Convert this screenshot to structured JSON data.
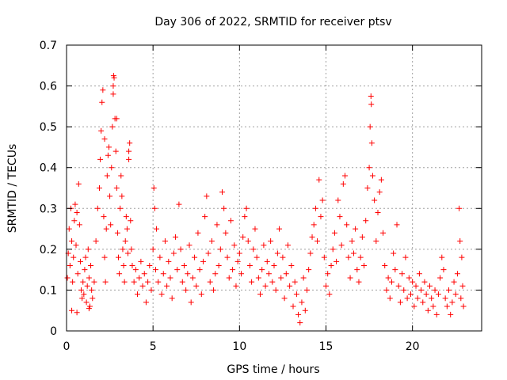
{
  "chart_data": {
    "type": "scatter",
    "title": "Day 306 of 2022, SRMTID for receiver ptsv",
    "xlabel": "GPS time / hours",
    "ylabel": "SRMTID / TECUs",
    "xlim": [
      0,
      24
    ],
    "ylim": [
      0,
      0.7
    ],
    "xticks": [
      "0",
      "5",
      "10",
      "15",
      "20"
    ],
    "yticks": [
      "0",
      "0.1",
      "0.2",
      "0.3",
      "0.4",
      "0.5",
      "0.6",
      "0.7"
    ],
    "grid": true,
    "marker": "+",
    "marker_color": "#ff0000",
    "series": [
      {
        "name": "SRMTID",
        "points": [
          [
            0.05,
            0.13
          ],
          [
            0.1,
            0.19
          ],
          [
            0.15,
            0.25
          ],
          [
            0.2,
            0.16
          ],
          [
            0.25,
            0.3
          ],
          [
            0.3,
            0.22
          ],
          [
            0.35,
            0.12
          ],
          [
            0.4,
            0.18
          ],
          [
            0.45,
            0.27
          ],
          [
            0.5,
            0.31
          ],
          [
            0.55,
            0.21
          ],
          [
            0.6,
            0.29
          ],
          [
            0.65,
            0.14
          ],
          [
            0.7,
            0.36
          ],
          [
            0.75,
            0.26
          ],
          [
            0.8,
            0.17
          ],
          [
            0.85,
            0.1
          ],
          [
            0.9,
            0.08
          ],
          [
            0.95,
            0.12
          ],
          [
            1.0,
            0.09
          ],
          [
            1.05,
            0.15
          ],
          [
            1.1,
            0.18
          ],
          [
            1.15,
            0.07
          ],
          [
            1.2,
            0.11
          ],
          [
            1.25,
            0.2
          ],
          [
            1.3,
            0.13
          ],
          [
            1.35,
            0.06
          ],
          [
            1.4,
            0.16
          ],
          [
            1.45,
            0.1
          ],
          [
            1.5,
            0.08
          ],
          [
            0.6,
            0.045
          ],
          [
            0.3,
            0.05
          ],
          [
            1.3,
            0.055
          ],
          [
            1.6,
            0.12
          ],
          [
            1.7,
            0.22
          ],
          [
            1.8,
            0.3
          ],
          [
            1.9,
            0.35
          ],
          [
            1.95,
            0.42
          ],
          [
            2.0,
            0.49
          ],
          [
            2.05,
            0.56
          ],
          [
            2.1,
            0.59
          ],
          [
            2.15,
            0.28
          ],
          [
            2.2,
            0.18
          ],
          [
            2.25,
            0.12
          ],
          [
            2.3,
            0.25
          ],
          [
            2.35,
            0.38
          ],
          [
            2.4,
            0.43
          ],
          [
            2.45,
            0.45
          ],
          [
            2.5,
            0.33
          ],
          [
            2.55,
            0.26
          ],
          [
            2.6,
            0.4
          ],
          [
            2.65,
            0.5
          ],
          [
            2.7,
            0.58
          ],
          [
            2.75,
            0.62
          ],
          [
            2.8,
            0.52
          ],
          [
            2.85,
            0.44
          ],
          [
            2.9,
            0.35
          ],
          [
            2.95,
            0.24
          ],
          [
            3.0,
            0.18
          ],
          [
            3.05,
            0.14
          ],
          [
            3.1,
            0.3
          ],
          [
            3.15,
            0.38
          ],
          [
            3.2,
            0.33
          ],
          [
            3.25,
            0.2
          ],
          [
            3.3,
            0.16
          ],
          [
            3.35,
            0.12
          ],
          [
            3.4,
            0.22
          ],
          [
            3.45,
            0.28
          ],
          [
            3.5,
            0.25
          ],
          [
            3.55,
            0.19
          ],
          [
            3.6,
            0.42
          ],
          [
            3.65,
            0.46
          ],
          [
            3.7,
            0.27
          ],
          [
            3.75,
            0.2
          ],
          [
            2.2,
            0.47
          ],
          [
            2.7,
            0.6
          ],
          [
            2.72,
            0.625
          ],
          [
            2.9,
            0.52
          ],
          [
            3.6,
            0.44
          ],
          [
            3.8,
            0.16
          ],
          [
            3.9,
            0.12
          ],
          [
            4.0,
            0.15
          ],
          [
            4.1,
            0.09
          ],
          [
            4.2,
            0.13
          ],
          [
            4.3,
            0.17
          ],
          [
            4.4,
            0.11
          ],
          [
            4.5,
            0.14
          ],
          [
            4.6,
            0.07
          ],
          [
            4.7,
            0.12
          ],
          [
            4.8,
            0.16
          ],
          [
            4.9,
            0.1
          ],
          [
            5.0,
            0.2
          ],
          [
            5.05,
            0.35
          ],
          [
            5.1,
            0.3
          ],
          [
            5.15,
            0.15
          ],
          [
            5.2,
            0.25
          ],
          [
            5.3,
            0.12
          ],
          [
            5.4,
            0.18
          ],
          [
            5.5,
            0.09
          ],
          [
            5.6,
            0.14
          ],
          [
            5.7,
            0.22
          ],
          [
            5.8,
            0.11
          ],
          [
            5.9,
            0.17
          ],
          [
            6.0,
            0.13
          ],
          [
            6.1,
            0.08
          ],
          [
            6.2,
            0.19
          ],
          [
            6.3,
            0.23
          ],
          [
            6.4,
            0.15
          ],
          [
            6.5,
            0.31
          ],
          [
            6.6,
            0.2
          ],
          [
            6.7,
            0.12
          ],
          [
            6.8,
            0.16
          ],
          [
            6.9,
            0.1
          ],
          [
            7.0,
            0.14
          ],
          [
            7.1,
            0.21
          ],
          [
            7.2,
            0.07
          ],
          [
            7.3,
            0.13
          ],
          [
            7.4,
            0.18
          ],
          [
            7.5,
            0.11
          ],
          [
            7.6,
            0.24
          ],
          [
            7.7,
            0.15
          ],
          [
            7.8,
            0.09
          ],
          [
            7.9,
            0.17
          ],
          [
            8.0,
            0.28
          ],
          [
            8.1,
            0.33
          ],
          [
            8.2,
            0.19
          ],
          [
            8.3,
            0.12
          ],
          [
            8.4,
            0.22
          ],
          [
            8.5,
            0.1
          ],
          [
            8.6,
            0.14
          ],
          [
            8.7,
            0.26
          ],
          [
            8.8,
            0.16
          ],
          [
            8.9,
            0.2
          ],
          [
            9.0,
            0.34
          ],
          [
            9.1,
            0.3
          ],
          [
            9.2,
            0.24
          ],
          [
            9.3,
            0.18
          ],
          [
            9.4,
            0.13
          ],
          [
            9.5,
            0.27
          ],
          [
            9.6,
            0.15
          ],
          [
            9.7,
            0.21
          ],
          [
            9.8,
            0.11
          ],
          [
            9.9,
            0.17
          ],
          [
            10.0,
            0.19
          ],
          [
            10.1,
            0.14
          ],
          [
            10.2,
            0.23
          ],
          [
            10.3,
            0.28
          ],
          [
            10.4,
            0.3
          ],
          [
            10.5,
            0.22
          ],
          [
            10.6,
            0.16
          ],
          [
            10.7,
            0.12
          ],
          [
            10.8,
            0.2
          ],
          [
            10.9,
            0.25
          ],
          [
            11.0,
            0.18
          ],
          [
            11.1,
            0.13
          ],
          [
            11.2,
            0.09
          ],
          [
            11.3,
            0.15
          ],
          [
            11.4,
            0.21
          ],
          [
            11.5,
            0.11
          ],
          [
            11.6,
            0.17
          ],
          [
            11.7,
            0.14
          ],
          [
            11.8,
            0.22
          ],
          [
            11.9,
            0.12
          ],
          [
            12.0,
            0.16
          ],
          [
            12.1,
            0.1
          ],
          [
            12.2,
            0.19
          ],
          [
            12.3,
            0.25
          ],
          [
            12.4,
            0.13
          ],
          [
            12.5,
            0.18
          ],
          [
            12.6,
            0.08
          ],
          [
            12.7,
            0.14
          ],
          [
            12.8,
            0.21
          ],
          [
            12.9,
            0.11
          ],
          [
            13.0,
            0.16
          ],
          [
            13.1,
            0.06
          ],
          [
            13.2,
            0.12
          ],
          [
            13.3,
            0.09
          ],
          [
            13.4,
            0.04
          ],
          [
            13.5,
            0.02
          ],
          [
            13.6,
            0.07
          ],
          [
            13.7,
            0.13
          ],
          [
            13.8,
            0.05
          ],
          [
            13.9,
            0.1
          ],
          [
            14.0,
            0.15
          ],
          [
            14.1,
            0.19
          ],
          [
            14.2,
            0.23
          ],
          [
            14.3,
            0.26
          ],
          [
            14.4,
            0.3
          ],
          [
            14.5,
            0.22
          ],
          [
            14.6,
            0.37
          ],
          [
            14.7,
            0.28
          ],
          [
            14.8,
            0.32
          ],
          [
            14.9,
            0.18
          ],
          [
            15.0,
            0.11
          ],
          [
            15.1,
            0.14
          ],
          [
            15.2,
            0.09
          ],
          [
            15.3,
            0.16
          ],
          [
            15.4,
            0.2
          ],
          [
            15.5,
            0.24
          ],
          [
            15.6,
            0.17
          ],
          [
            15.7,
            0.32
          ],
          [
            15.8,
            0.28
          ],
          [
            15.9,
            0.21
          ],
          [
            16.0,
            0.36
          ],
          [
            16.1,
            0.38
          ],
          [
            16.2,
            0.26
          ],
          [
            16.3,
            0.18
          ],
          [
            16.4,
            0.13
          ],
          [
            16.5,
            0.22
          ],
          [
            16.6,
            0.19
          ],
          [
            16.7,
            0.25
          ],
          [
            16.8,
            0.15
          ],
          [
            16.9,
            0.12
          ],
          [
            17.0,
            0.18
          ],
          [
            17.1,
            0.23
          ],
          [
            17.2,
            0.16
          ],
          [
            17.3,
            0.27
          ],
          [
            17.4,
            0.35
          ],
          [
            17.5,
            0.4
          ],
          [
            17.55,
            0.5
          ],
          [
            17.6,
            0.575
          ],
          [
            17.62,
            0.555
          ],
          [
            17.65,
            0.46
          ],
          [
            17.7,
            0.38
          ],
          [
            17.8,
            0.32
          ],
          [
            17.9,
            0.22
          ],
          [
            18.0,
            0.29
          ],
          [
            18.1,
            0.34
          ],
          [
            18.2,
            0.37
          ],
          [
            18.3,
            0.24
          ],
          [
            18.4,
            0.16
          ],
          [
            18.5,
            0.1
          ],
          [
            18.6,
            0.13
          ],
          [
            18.7,
            0.08
          ],
          [
            18.8,
            0.12
          ],
          [
            18.9,
            0.19
          ],
          [
            19.0,
            0.15
          ],
          [
            19.1,
            0.26
          ],
          [
            19.2,
            0.11
          ],
          [
            19.3,
            0.07
          ],
          [
            19.4,
            0.14
          ],
          [
            19.5,
            0.1
          ],
          [
            19.6,
            0.18
          ],
          [
            19.7,
            0.08
          ],
          [
            19.8,
            0.13
          ],
          [
            19.9,
            0.09
          ],
          [
            20.0,
            0.12
          ],
          [
            20.1,
            0.06
          ],
          [
            20.2,
            0.11
          ],
          [
            20.3,
            0.08
          ],
          [
            20.4,
            0.14
          ],
          [
            20.5,
            0.1
          ],
          [
            20.6,
            0.07
          ],
          [
            20.7,
            0.12
          ],
          [
            20.8,
            0.09
          ],
          [
            20.9,
            0.05
          ],
          [
            21.0,
            0.11
          ],
          [
            21.1,
            0.08
          ],
          [
            21.2,
            0.06
          ],
          [
            21.3,
            0.1
          ],
          [
            21.4,
            0.04
          ],
          [
            21.5,
            0.09
          ],
          [
            21.6,
            0.13
          ],
          [
            21.7,
            0.18
          ],
          [
            21.8,
            0.15
          ],
          [
            21.9,
            0.08
          ],
          [
            22.0,
            0.06
          ],
          [
            22.1,
            0.1
          ],
          [
            22.2,
            0.04
          ],
          [
            22.3,
            0.07
          ],
          [
            22.4,
            0.12
          ],
          [
            22.5,
            0.09
          ],
          [
            22.6,
            0.14
          ],
          [
            22.7,
            0.3
          ],
          [
            22.75,
            0.22
          ],
          [
            22.8,
            0.08
          ],
          [
            22.85,
            0.18
          ],
          [
            22.9,
            0.11
          ],
          [
            22.95,
            0.06
          ]
        ]
      }
    ]
  }
}
